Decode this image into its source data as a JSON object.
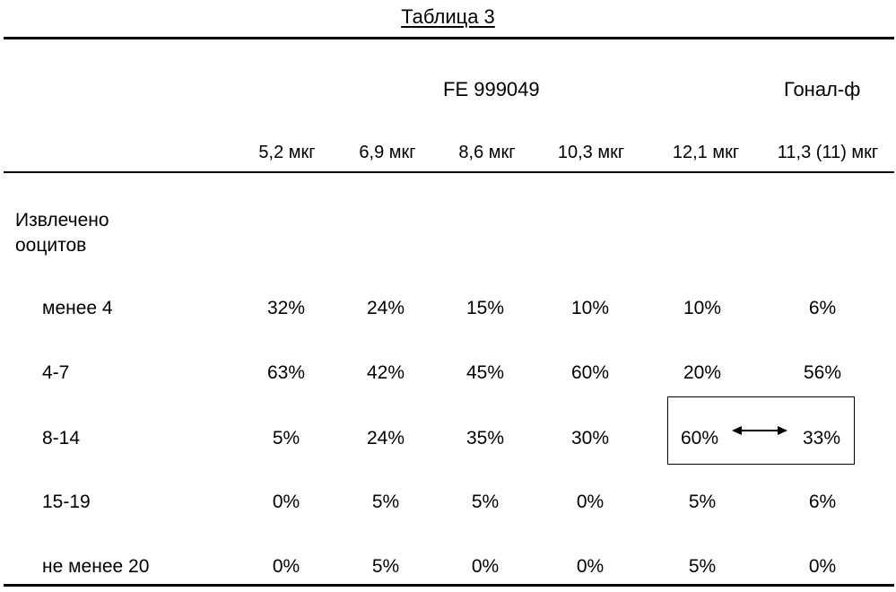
{
  "title": "Таблица 3",
  "groups": {
    "fe": "FE 999049",
    "gonal": "Гонал-ф"
  },
  "doses": [
    "5,2 мкг",
    "6,9 мкг",
    "8,6 мкг",
    "10,3 мкг",
    "12,1 мкг",
    "11,3 (11) мкг"
  ],
  "section_label": {
    "line1": "Извлечено",
    "line2": "ооцитов"
  },
  "rows": [
    {
      "label": "менее 4",
      "values": [
        "32%",
        "24%",
        "15%",
        "10%",
        "10%",
        "6%"
      ]
    },
    {
      "label": "4-7",
      "values": [
        "63%",
        "42%",
        "45%",
        "60%",
        "20%",
        "56%"
      ]
    },
    {
      "label": "8-14",
      "values": [
        "5%",
        "24%",
        "35%",
        "30%",
        "60%",
        "33%"
      ]
    },
    {
      "label": "15-19",
      "values": [
        "0%",
        "5%",
        "5%",
        "0%",
        "5%",
        "6%"
      ]
    },
    {
      "label": "не менее 20",
      "values": [
        "0%",
        "5%",
        "0%",
        "0%",
        "5%",
        "0%"
      ]
    }
  ]
}
